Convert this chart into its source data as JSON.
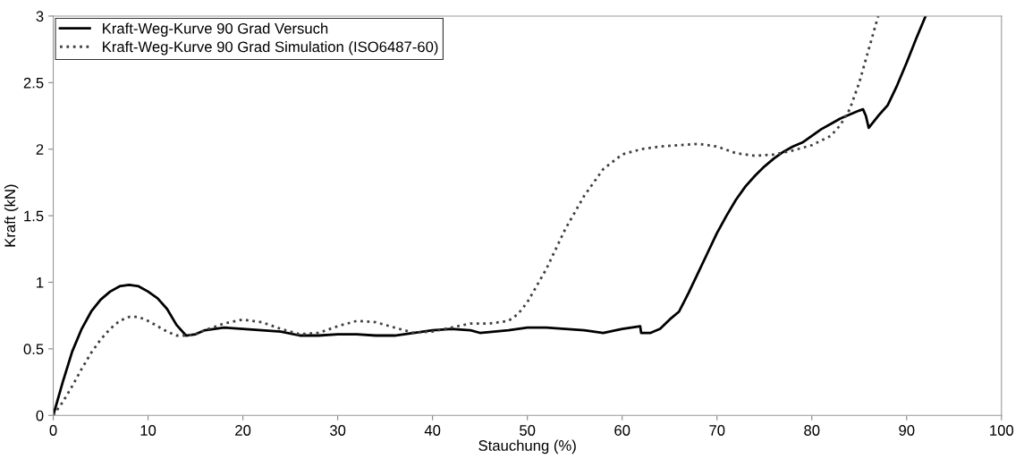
{
  "chart_data": {
    "type": "line",
    "xlabel": "Stauchung (%)",
    "ylabel": "Kraft (kN)",
    "xlim": [
      0,
      100
    ],
    "ylim": [
      0,
      3
    ],
    "xticks": [
      0,
      10,
      20,
      30,
      40,
      50,
      60,
      70,
      80,
      90,
      100
    ],
    "yticks": [
      0,
      0.5,
      1,
      1.5,
      2,
      2.5,
      3
    ],
    "grid": false,
    "legend": "top left",
    "series": [
      {
        "name": "Kraft-Weg-Kurve 90 Grad Versuch",
        "color": "#000000",
        "line_style": "solid",
        "x": [
          0,
          1,
          2,
          3,
          4,
          5,
          6,
          7,
          8,
          9,
          10,
          11,
          12,
          13,
          14,
          15,
          16,
          17,
          18,
          20,
          22,
          24,
          26,
          28,
          30,
          32,
          34,
          36,
          38,
          40,
          42,
          44,
          45,
          48,
          50,
          52,
          54,
          56,
          58,
          60,
          61.9,
          62,
          63,
          64,
          65,
          66,
          67,
          68,
          69,
          70,
          71,
          72,
          73,
          74,
          75,
          76,
          77,
          78,
          79,
          80,
          81,
          82,
          83,
          84,
          85,
          85.4,
          85.7,
          86,
          87,
          88,
          89,
          90,
          91,
          92
        ],
        "values": [
          0,
          0.25,
          0.48,
          0.65,
          0.78,
          0.87,
          0.93,
          0.97,
          0.98,
          0.97,
          0.93,
          0.88,
          0.8,
          0.68,
          0.6,
          0.61,
          0.64,
          0.65,
          0.66,
          0.65,
          0.64,
          0.63,
          0.6,
          0.6,
          0.61,
          0.61,
          0.6,
          0.6,
          0.62,
          0.64,
          0.65,
          0.64,
          0.62,
          0.64,
          0.66,
          0.66,
          0.65,
          0.64,
          0.62,
          0.65,
          0.67,
          0.62,
          0.62,
          0.65,
          0.72,
          0.78,
          0.92,
          1.07,
          1.22,
          1.37,
          1.5,
          1.62,
          1.72,
          1.8,
          1.87,
          1.93,
          1.98,
          2.02,
          2.05,
          2.1,
          2.15,
          2.19,
          2.23,
          2.26,
          2.29,
          2.3,
          2.25,
          2.16,
          2.25,
          2.33,
          2.48,
          2.65,
          2.83,
          3.0
        ]
      },
      {
        "name": "Kraft-Weg-Kurve 90 Grad Simulation (ISO6487-60)",
        "color": "#404040",
        "line_style": "dotted",
        "x": [
          0,
          1,
          2,
          3,
          4,
          5,
          6,
          7,
          8,
          9,
          10,
          11,
          12,
          13,
          14,
          15,
          16,
          18,
          20,
          22,
          24,
          26,
          28,
          30,
          32,
          34,
          36,
          38,
          40,
          42,
          44,
          46,
          48,
          49,
          50,
          52,
          54,
          56,
          58,
          60,
          62,
          64,
          66,
          68,
          70,
          72,
          74,
          76,
          78,
          80,
          82,
          83,
          84,
          85,
          86,
          87
        ],
        "values": [
          0,
          0.1,
          0.22,
          0.35,
          0.47,
          0.57,
          0.65,
          0.71,
          0.74,
          0.74,
          0.71,
          0.67,
          0.63,
          0.6,
          0.6,
          0.61,
          0.64,
          0.69,
          0.72,
          0.7,
          0.65,
          0.61,
          0.62,
          0.67,
          0.71,
          0.7,
          0.66,
          0.62,
          0.63,
          0.66,
          0.69,
          0.69,
          0.71,
          0.76,
          0.85,
          1.1,
          1.4,
          1.65,
          1.85,
          1.96,
          2.0,
          2.02,
          2.03,
          2.04,
          2.02,
          1.97,
          1.95,
          1.96,
          1.99,
          2.03,
          2.1,
          2.18,
          2.3,
          2.5,
          2.75,
          3.0
        ]
      }
    ]
  }
}
